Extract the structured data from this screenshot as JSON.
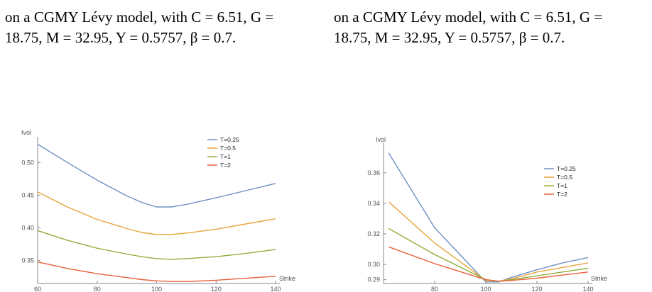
{
  "captions": [
    {
      "line1": "on a CGMY Lévy model, with C = 6.51, G =",
      "line2": "18.75, M = 32.95, Y = 0.5757, β = 0.7."
    },
    {
      "line1": "on a CGMY Lévy model, with C = 6.51, G =",
      "line2": "18.75, M = 32.95, Y = 0.5757, β = 0.7."
    }
  ],
  "colors": {
    "T=0.25": "#6f90c3",
    "T=0.5": "#e8a43a",
    "T=1": "#8fae3a",
    "T=2": "#e8603a"
  },
  "chart_data": [
    {
      "type": "line",
      "ylabel": "Ivol",
      "xlabel": "Strike",
      "xlim": [
        60,
        140
      ],
      "ylim": [
        0.315,
        0.535
      ],
      "xticks": [
        60,
        80,
        100,
        120,
        140
      ],
      "yticks": [
        0.35,
        0.4,
        0.45,
        0.5
      ],
      "ytick_labels": [
        "0.35",
        "0.40",
        "0.45",
        "0.50"
      ],
      "legend": "top-right",
      "x": [
        60,
        70,
        80,
        90,
        95,
        100,
        105,
        110,
        120,
        130,
        140
      ],
      "series": [
        {
          "name": "T=0.25",
          "values": [
            0.528,
            0.5,
            0.473,
            0.449,
            0.439,
            0.432,
            0.432,
            0.436,
            0.446,
            0.457,
            0.468
          ]
        },
        {
          "name": "T=0.5",
          "values": [
            0.455,
            0.432,
            0.413,
            0.399,
            0.393,
            0.39,
            0.39,
            0.392,
            0.398,
            0.406,
            0.414
          ]
        },
        {
          "name": "T=1",
          "values": [
            0.396,
            0.381,
            0.369,
            0.36,
            0.356,
            0.353,
            0.352,
            0.353,
            0.356,
            0.361,
            0.367
          ]
        },
        {
          "name": "T=2",
          "values": [
            0.348,
            0.338,
            0.33,
            0.324,
            0.321,
            0.319,
            0.318,
            0.318,
            0.32,
            0.323,
            0.326
          ]
        }
      ]
    },
    {
      "type": "line",
      "ylabel": "Ivol",
      "xlabel": "Strike",
      "xlim": [
        60,
        140
      ],
      "ylim": [
        0.2875,
        0.378
      ],
      "xticks": [
        80,
        100,
        120,
        140
      ],
      "yticks": [
        0.29,
        0.3,
        0.32,
        0.34,
        0.36
      ],
      "ytick_labels": [
        "0.29",
        "0.30",
        "0.32",
        "0.34",
        "0.36"
      ],
      "legend": "top-right",
      "x": [
        62,
        80,
        100,
        105,
        110,
        120,
        130,
        140
      ],
      "series": [
        {
          "name": "T=0.25",
          "values": [
            0.373,
            0.324,
            0.2885,
            0.2885,
            0.2915,
            0.2965,
            0.301,
            0.3045
          ]
        },
        {
          "name": "T=0.5",
          "values": [
            0.341,
            0.314,
            0.2895,
            0.289,
            0.2905,
            0.295,
            0.298,
            0.301
          ]
        },
        {
          "name": "T=1",
          "values": [
            0.3235,
            0.3065,
            0.29,
            0.289,
            0.29,
            0.2925,
            0.295,
            0.2975
          ]
        },
        {
          "name": "T=2",
          "values": [
            0.3115,
            0.3005,
            0.29,
            0.289,
            0.2895,
            0.291,
            0.293,
            0.295
          ]
        }
      ]
    }
  ]
}
